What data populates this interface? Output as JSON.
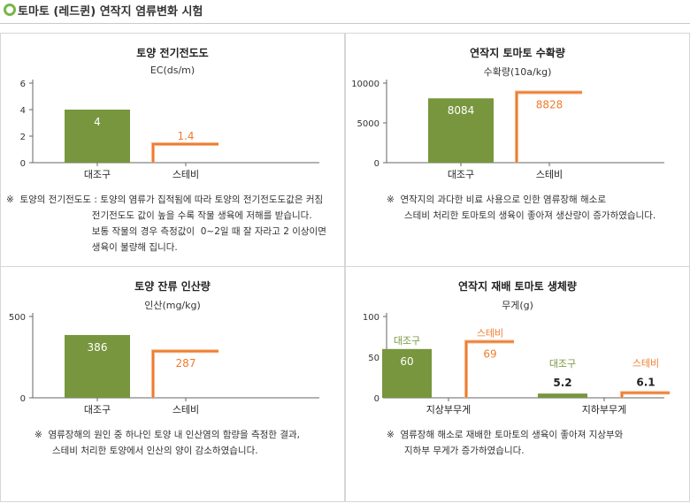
{
  "header": {
    "title": "토마토 (레드퀸) 연작지 염류변화 시험"
  },
  "colors": {
    "green": "#77963e",
    "orange": "#f07c2c",
    "axis": "#666666"
  },
  "panels": [
    {
      "title": "토양 전기전도도",
      "unit": "EC(ds/m)",
      "notes": [
        "※  토양의 전기전도도 : 토양의 염류가 집적됨에 따라 토양의 전기전도도값은 커짐",
        "                             전기전도도 값이 높을 수록 작물 생육에 저해를 받습니다.",
        "                             보통 작물의 경우 측정값이  0~2일 때 잘 자라고 2 이상이면",
        "                             생육이 불량해 집니다."
      ]
    },
    {
      "title": "연작지 토마토 수확량",
      "unit": "수확량(10a/kg)",
      "notes": [
        "※  연작지의 과다한 비료 사용으로 인한 염류장해 해소로",
        "      스테비 처리한 토마토의 생육이 좋아져 생산량이 증가하였습니다."
      ]
    },
    {
      "title": "토양 잔류 인산량",
      "unit": "인산(mg/kg)",
      "notes": [
        "※  염류장해의 원인 중 하나인 토양 내 인산염의 함량을 측정한 결과,",
        "      스테비 처리한 토양에서 인산의 양이 감소하였습니다."
      ]
    },
    {
      "title": "연작지 재배 토마토 생체량",
      "unit": "무게(g)",
      "notes": [
        "※  염류장해 해소로 재배한 토마토의 생육이 좋아져 지상부와",
        "      지하부 무게가 증가하였습니다."
      ]
    }
  ],
  "chart_data": [
    {
      "type": "bar",
      "title": "토양 전기전도도",
      "ylabel": "EC(ds/m)",
      "categories": [
        "대조구",
        "스테비"
      ],
      "values": [
        4,
        1.4
      ],
      "value_labels": [
        "4",
        "1.4"
      ],
      "ylim": [
        0,
        6
      ],
      "yticks": [
        0,
        2,
        4,
        6
      ],
      "grid": false
    },
    {
      "type": "bar",
      "title": "연작지 토마토 수확량",
      "ylabel": "수확량(10a/kg)",
      "categories": [
        "대조구",
        "스테비"
      ],
      "values": [
        8084,
        8828
      ],
      "value_labels": [
        "8084",
        "8828"
      ],
      "ylim": [
        0,
        10000
      ],
      "yticks": [
        0,
        5000,
        10000
      ],
      "grid": false
    },
    {
      "type": "bar",
      "title": "토양 잔류 인산량",
      "ylabel": "인산(mg/kg)",
      "categories": [
        "대조구",
        "스테비"
      ],
      "values": [
        386,
        287
      ],
      "value_labels": [
        "386",
        "287"
      ],
      "ylim": [
        0,
        500
      ],
      "yticks": [
        0,
        500
      ],
      "grid": false
    },
    {
      "type": "bar",
      "title": "연작지 재배 토마토 생체량",
      "ylabel": "무게(g)",
      "categories": [
        "지상부무게",
        "지하부무게"
      ],
      "series": [
        {
          "name": "대조구",
          "values": [
            60,
            5.2
          ],
          "value_labels": [
            "60",
            "5.2"
          ]
        },
        {
          "name": "스테비",
          "values": [
            69,
            6.1
          ],
          "value_labels": [
            "69",
            "6.1"
          ]
        }
      ],
      "ylim": [
        0,
        100
      ],
      "yticks": [
        0,
        50,
        100
      ],
      "grid": false
    }
  ]
}
